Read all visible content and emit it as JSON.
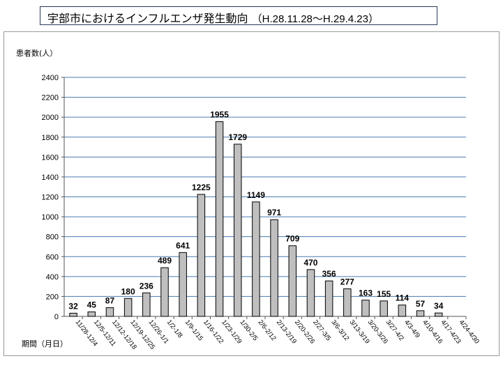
{
  "title": {
    "main": "宇部市におけるインフルエンザ発生動向",
    "range": "（H.28.11.28〜H.29.4.23）"
  },
  "chart_data": {
    "type": "bar",
    "ylabel": "患者数(人）",
    "xlabel": "期間（月日）",
    "ylim": [
      0,
      2400
    ],
    "yticks": [
      0,
      200,
      400,
      600,
      800,
      1000,
      1200,
      1400,
      1600,
      1800,
      2000,
      2200,
      2400
    ],
    "grid": true,
    "bar_color": "#bfbfbf",
    "grid_color": "#4a7ab0",
    "categories": [
      "11/28-12/4",
      "12/5-12/11",
      "12/12-12/18",
      "12/19-12/25",
      "12/26-1/1",
      "1/2-1/8",
      "1/9-1/15",
      "1/16-1/22",
      "1/23-1/29",
      "1/30-2/5",
      "2/6-2/12",
      "2/13-2/19",
      "2/20-2/26",
      "2/27-3/5",
      "3/6-3/12",
      "3/13-3/19",
      "3/20-3/26",
      "3/27-4/2",
      "4/3-4/9",
      "4/10-4/16",
      "4/17-4/23",
      "4/24-4/30"
    ],
    "values": [
      32,
      45,
      87,
      180,
      236,
      489,
      641,
      1225,
      1955,
      1729,
      1149,
      971,
      709,
      470,
      356,
      277,
      163,
      155,
      114,
      57,
      34,
      null
    ]
  }
}
